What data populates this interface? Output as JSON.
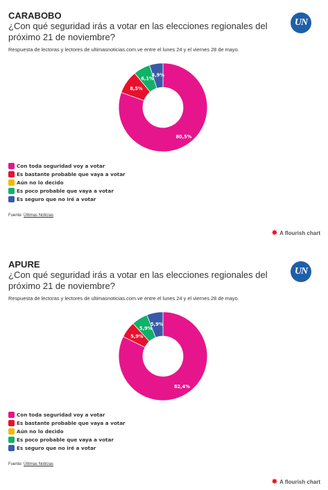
{
  "chart_data": [
    {
      "type": "pie",
      "region": "CARABOBO",
      "title": "¿Con qué seguridad irás a votar en las elecciones regionales del próximo 21 de noviembre?",
      "subtitle": "Respuesta de lectoras y lectores de ultimasnoticias.com.ve entre el lunes 24 y el viernes 28 de mayo.",
      "categories": [
        "Con toda seguridad voy a votar",
        "Es bastante probable que vaya a votar",
        "Aún no lo decido",
        "Es poco probable que vaya a votar",
        "Es seguro que no iré a votar"
      ],
      "values": [
        80.5,
        8.5,
        0,
        6.1,
        4.9
      ],
      "labels": [
        "80,5%",
        "8,5%",
        "",
        "6,1%",
        "4,9%"
      ],
      "colors": [
        "#e6158c",
        "#e8102c",
        "#f3b800",
        "#10b168",
        "#3a5aa8"
      ],
      "source_label": "Fuente:",
      "source_link": "Últimas Noticias",
      "flourish": "A flourish chart",
      "logo": "UN"
    },
    {
      "type": "pie",
      "region": "APURE",
      "title": "¿Con qué seguridad irás a votar en las elecciones regionales del próximo 21 de noviembre?",
      "subtitle": "Respuesta de lectoras y lectores de ultimasnoticias.com.ve entre el lunes 24 y el viernes 28 de mayo.",
      "categories": [
        "Con toda seguridad voy a votar",
        "Es bastante probable que vaya a votar",
        "Aún no lo decido",
        "Es poco probable que vaya a votar",
        "Es seguro que no iré a votar"
      ],
      "values": [
        82.4,
        5.9,
        0,
        5.9,
        5.9
      ],
      "labels": [
        "82,4%",
        "5,9%",
        "",
        "5,9%",
        "5,9%"
      ],
      "colors": [
        "#e6158c",
        "#e8102c",
        "#f3b800",
        "#10b168",
        "#3a5aa8"
      ],
      "source_label": "Fuente:",
      "source_link": "Últimas Noticias",
      "flourish": "A flourish chart",
      "logo": "UN"
    }
  ]
}
